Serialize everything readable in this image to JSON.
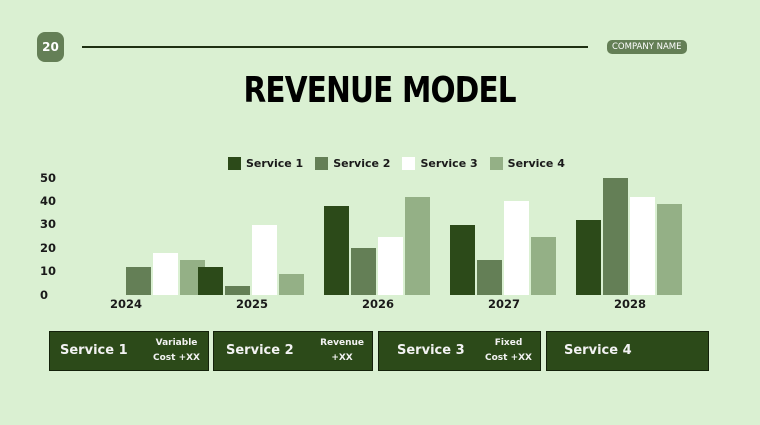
{
  "header": {
    "page_number": "20",
    "company_name": "COMPANY NAME",
    "title": "REVENUE MODEL"
  },
  "colors": {
    "background": "#daf0d2",
    "service1": "#2c4a19",
    "service2": "#647f56",
    "service3": "#ffffff",
    "service4": "#94b086",
    "card": "#2c4a19"
  },
  "chart_data": {
    "type": "bar",
    "title": "",
    "xlabel": "",
    "ylabel": "",
    "ylim": [
      0,
      50
    ],
    "yticks": [
      0,
      10,
      20,
      30,
      40,
      50
    ],
    "grid": false,
    "legend_position": "top",
    "categories": [
      "2024",
      "2025",
      "2026",
      "2027",
      "2028"
    ],
    "series": [
      {
        "name": "Service 1",
        "values": [
          0,
          12,
          38,
          30,
          32
        ]
      },
      {
        "name": "Service 2",
        "values": [
          12,
          4,
          20,
          15,
          50
        ]
      },
      {
        "name": "Service 3",
        "values": [
          18,
          30,
          25,
          40,
          42
        ]
      },
      {
        "name": "Service 4",
        "values": [
          15,
          9,
          42,
          25,
          39
        ]
      }
    ]
  },
  "cards": [
    {
      "title": "Service 1",
      "note_line1": "Variable",
      "note_line2": "Cost +XX"
    },
    {
      "title": "Service 2",
      "note_line1": "Revenue",
      "note_line2": "+XX"
    },
    {
      "title": "Service 3",
      "note_line1": "Fixed",
      "note_line2": "Cost +XX"
    },
    {
      "title": "Service 4",
      "note_line1": "",
      "note_line2": ""
    }
  ]
}
